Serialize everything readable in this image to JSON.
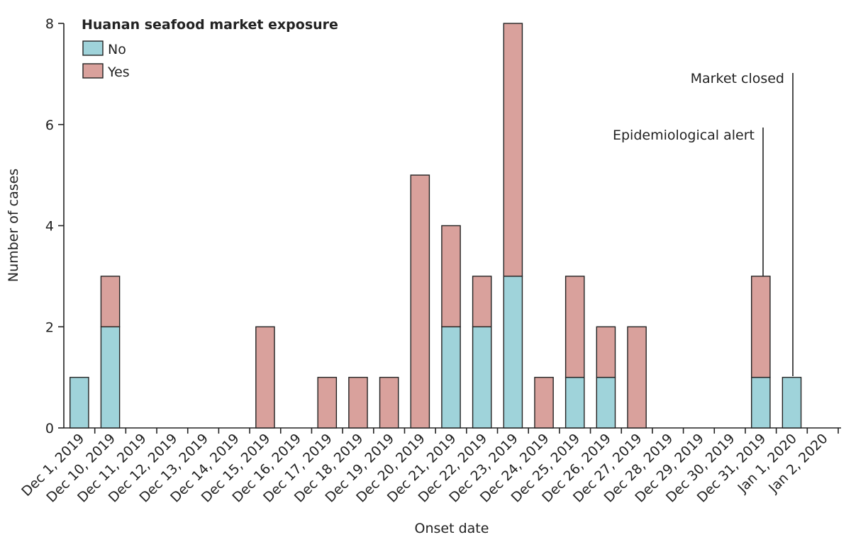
{
  "chart_data": {
    "type": "stacked_bar",
    "legend_title": "Huanan seafood market exposure",
    "x_label": "Onset date",
    "y_label": "Number of cases",
    "categories": [
      "Dec 1, 2019",
      "Dec 10, 2019",
      "Dec 11, 2019",
      "Dec 12, 2019",
      "Dec 13, 2019",
      "Dec 14, 2019",
      "Dec 15, 2019",
      "Dec 16, 2019",
      "Dec 17, 2019",
      "Dec 18, 2019",
      "Dec 19, 2019",
      "Dec 20, 2019",
      "Dec 21, 2019",
      "Dec 22, 2019",
      "Dec 23, 2019",
      "Dec 24, 2019",
      "Dec 25, 2019",
      "Dec 26, 2019",
      "Dec 27, 2019",
      "Dec 28, 2019",
      "Dec 29, 2019",
      "Dec 30, 2019",
      "Dec 31, 2019",
      "Jan 1, 2020",
      "Jan 2, 2020"
    ],
    "series": [
      {
        "name": "No",
        "color": "#9fd3da",
        "values": [
          1,
          2,
          0,
          0,
          0,
          0,
          0,
          0,
          0,
          0,
          0,
          0,
          2,
          2,
          3,
          0,
          1,
          1,
          0,
          0,
          0,
          0,
          1,
          1,
          0
        ]
      },
      {
        "name": "Yes",
        "color": "#d9a19c",
        "values": [
          0,
          1,
          0,
          0,
          0,
          0,
          2,
          0,
          1,
          1,
          1,
          5,
          2,
          1,
          5,
          1,
          2,
          1,
          2,
          0,
          0,
          0,
          2,
          0,
          0
        ]
      }
    ],
    "ylim": [
      0,
      8
    ],
    "yticks": [
      0,
      2,
      4,
      6,
      8
    ],
    "annotations": [
      "Epidemiological alert",
      "Market closed"
    ]
  }
}
